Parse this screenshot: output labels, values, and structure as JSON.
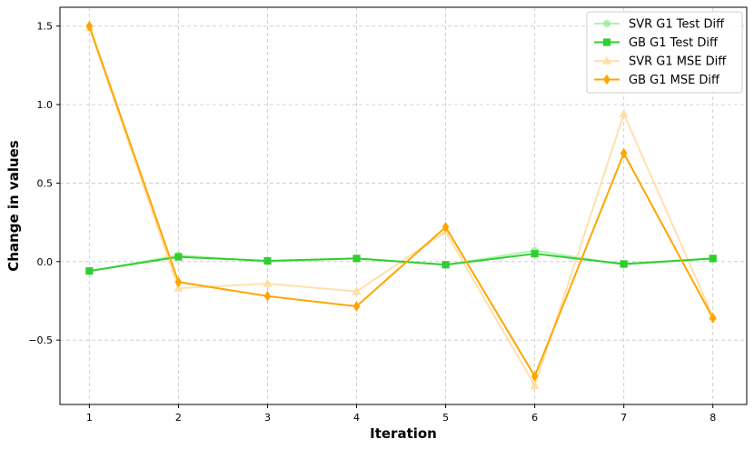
{
  "chart_data": {
    "type": "line",
    "title": "",
    "xlabel": "Iteration",
    "ylabel": "Change in values",
    "x": [
      1,
      2,
      3,
      4,
      5,
      6,
      7,
      8
    ],
    "xlim": [
      0.67,
      8.38
    ],
    "ylim": [
      -0.91,
      1.62
    ],
    "xticks": [
      1,
      2,
      3,
      4,
      5,
      6,
      7,
      8
    ],
    "yticks": [
      -0.5,
      0.0,
      0.5,
      1.0,
      1.5
    ],
    "ytick_labels": [
      "−0.5",
      "0.0",
      "0.5",
      "1.0",
      "1.5"
    ],
    "grid": true,
    "legend_position": "top-right",
    "series": [
      {
        "name": "SVR G1 Test Diff",
        "color": "#90ee90",
        "marker": "circle",
        "alpha": 0.7,
        "values": [
          -0.06,
          0.04,
          0.0,
          0.02,
          -0.02,
          0.07,
          -0.02,
          0.02
        ]
      },
      {
        "name": "GB G1 Test Diff",
        "color": "#32cd32",
        "marker": "square",
        "alpha": 1.0,
        "values": [
          -0.06,
          0.03,
          0.005,
          0.02,
          -0.02,
          0.05,
          -0.015,
          0.02
        ]
      },
      {
        "name": "SVR G1 MSE Diff",
        "color": "#ffdca0",
        "marker": "triangle",
        "alpha": 0.85,
        "values": [
          1.49,
          -0.17,
          -0.14,
          -0.19,
          0.19,
          -0.79,
          0.94,
          -0.35
        ]
      },
      {
        "name": "GB G1 MSE Diff",
        "color": "#ffa500",
        "marker": "diamond",
        "alpha": 1.0,
        "values": [
          1.5,
          -0.13,
          -0.22,
          -0.285,
          0.22,
          -0.73,
          0.69,
          -0.36
        ]
      }
    ]
  }
}
